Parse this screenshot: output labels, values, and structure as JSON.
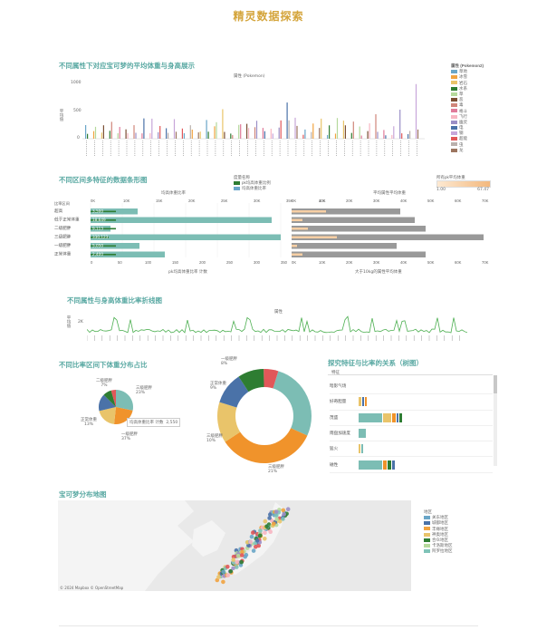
{
  "page": {
    "title": "精灵数据探索"
  },
  "sections": {
    "s1": "不同属性下对应宝可梦的平均体重与身高展示",
    "s2": "不同区间多特征的数据条形图",
    "s3": "不同属性与身高体重比率折线图",
    "s4": "不同比率区间下体重分布占比",
    "s5": "探究特征与比率的关系（树图）",
    "s6": "宝可梦分布地图"
  },
  "s1": {
    "header": "属性 (Pokemon)",
    "yaxis_label": "平均值",
    "yticks": [
      "1000",
      "500",
      "0"
    ],
    "legend_title": "属性 (Pokemon2)",
    "legend_items": [
      {
        "label": "草地",
        "color": "#6aa6c8"
      },
      {
        "label": "冰雪",
        "color": "#f1a340"
      },
      {
        "label": "岩石",
        "color": "#e9c46a"
      },
      {
        "label": "水系",
        "color": "#2e7d32"
      },
      {
        "label": "草",
        "color": "#b5d99c"
      },
      {
        "label": "恶",
        "color": "#7b4e33"
      },
      {
        "label": "毒",
        "color": "#d0857a"
      },
      {
        "label": "格斗",
        "color": "#e07b9a"
      },
      {
        "label": "飞行",
        "color": "#f7b6c2"
      },
      {
        "label": "幽灵",
        "color": "#9b8fc6"
      },
      {
        "label": "电",
        "color": "#4a72a8"
      },
      {
        "label": "钢",
        "color": "#c7a6d9"
      },
      {
        "label": "超能",
        "color": "#e15759"
      },
      {
        "label": "虫",
        "color": "#bab0ac"
      },
      {
        "label": "龙",
        "color": "#9c755f"
      }
    ]
  },
  "s2": {
    "legend_title": "度量名称",
    "legend_items": [
      {
        "label": "pk均高体重比例",
        "color": "#2e7d32"
      },
      {
        "label": "均高体重比率",
        "color": "#6aa6c8"
      }
    ],
    "pk_legend_title": "所有pk平均体重",
    "pk_range": [
      "1.00",
      "67.47"
    ],
    "left_top_axis": "均高体重比率",
    "right_top_axis": "平均属性平均体重",
    "left_bottom_axis": "pk均高体重比率 计数",
    "right_bottom_axis": "大于10kg的属性平均体重",
    "row_header": "比率区间",
    "rows": [
      "超高",
      "低于正常体重",
      "二级肥胖",
      "三级肥胖",
      "一级肥胖",
      "正常体重"
    ],
    "top_ticks_left": [
      "0K",
      "10K",
      "15K",
      "20K",
      "25K",
      "30K",
      "35K",
      "40K"
    ],
    "top_ticks_right": [
      "0K",
      "10K",
      "20K",
      "30K",
      "40K",
      "50K",
      "60K",
      "70K"
    ],
    "bottom_ticks_left": [
      "0",
      "50",
      "100",
      "150",
      "200",
      "250",
      "300",
      "350"
    ],
    "bottom_ticks_right": [
      "0K",
      "10K",
      "20K",
      "30K",
      "40K",
      "50K",
      "60K",
      "70K"
    ],
    "bar_labels": [
      "3,500",
      "18,649",
      "9,113",
      "330,123",
      "5,050",
      "2,400"
    ]
  },
  "s3": {
    "header": "属性",
    "ylabel": "平均值",
    "ytick": "2K"
  },
  "s4": {
    "labels": [
      {
        "name": "三级肥胖",
        "pct": "23%"
      },
      {
        "name": "二级肥胖",
        "pct": "7%"
      },
      {
        "name": "正常体重",
        "pct": "13%"
      },
      {
        "name": "一级肥胖",
        "pct": "37%"
      }
    ],
    "tooltip_label": "均高体重比率 计数",
    "tooltip_value": "2,550",
    "donut_labels": [
      {
        "name": "三级肥胖",
        "pct": "15%"
      },
      {
        "name": "正常体重",
        "pct": "9%"
      },
      {
        "name": "三级肥胖",
        "pct": "10%"
      },
      {
        "name": "一级肥胖",
        "pct": "8%"
      },
      {
        "name": "一级肥胖",
        "pct": "10%"
      },
      {
        "name": "三级肥胖",
        "pct": "21%"
      }
    ]
  },
  "s5": {
    "column_header": "特征",
    "rows": [
      "暗影气场",
      "好奇胆量",
      "茂盛",
      "雨盘加速度",
      "猛火",
      "磁性"
    ]
  },
  "s6": {
    "attribution": "© 2024 Mapbox © OpenStreetMap",
    "legend_title": "地区",
    "legend_items": [
      {
        "label": "关东地区",
        "color": "#6aa6c8"
      },
      {
        "label": "城都地区",
        "color": "#4a72a8"
      },
      {
        "label": "丰缘地区",
        "color": "#f1a340"
      },
      {
        "label": "神奥地区",
        "color": "#e9c46a"
      },
      {
        "label": "合众地区",
        "color": "#2e7d32"
      },
      {
        "label": "卡洛斯地区",
        "color": "#b5d99c"
      },
      {
        "label": "阿罗拉地区",
        "color": "#7fc3b8"
      }
    ]
  },
  "colors": {
    "title": "#d4a43a",
    "section": "#5aa9a3",
    "teal": "#7cbdb4",
    "orange": "#f0932b",
    "gold": "#e9c46a",
    "blue": "#4a72a8",
    "green": "#2e7d32",
    "red": "#e15759",
    "gray": "#999999",
    "peach": "#f7cfa4"
  }
}
